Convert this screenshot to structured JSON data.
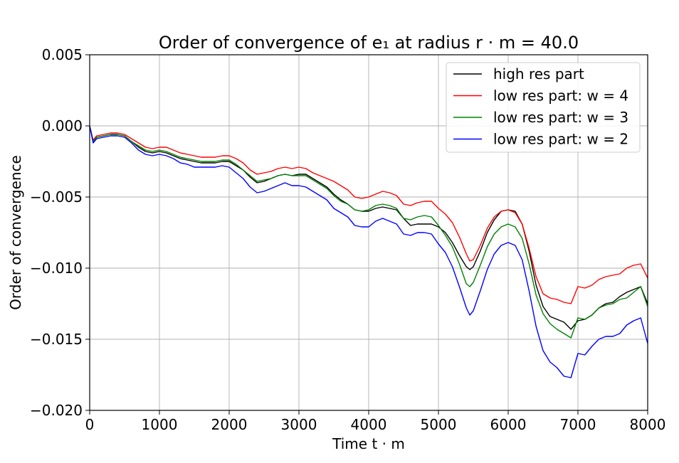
{
  "chart_data": {
    "type": "line",
    "title": "Order of convergence of e₁ at radius r · m = 40.0",
    "xlabel": "Time t · m",
    "ylabel": "Order of convergence",
    "xlim": [
      0,
      8000
    ],
    "ylim": [
      -0.02,
      0.005
    ],
    "xticks": [
      0,
      1000,
      2000,
      3000,
      4000,
      5000,
      6000,
      7000,
      8000
    ],
    "xtick_labels": [
      "0",
      "1000",
      "2000",
      "3000",
      "4000",
      "5000",
      "6000",
      "7000",
      "8000"
    ],
    "yticks": [
      0.005,
      0.0,
      -0.005,
      -0.01,
      -0.015,
      -0.02
    ],
    "ytick_labels": [
      "0.005",
      "0.000",
      "−0.005",
      "−0.010",
      "−0.015",
      "−0.020"
    ],
    "grid": true,
    "legend_position": "top-right",
    "x": [
      0,
      50,
      100,
      200,
      300,
      400,
      500,
      600,
      700,
      800,
      900,
      1000,
      1100,
      1200,
      1300,
      1400,
      1500,
      1600,
      1700,
      1800,
      1900,
      2000,
      2100,
      2200,
      2300,
      2400,
      2500,
      2600,
      2700,
      2800,
      2900,
      3000,
      3100,
      3200,
      3300,
      3400,
      3500,
      3600,
      3700,
      3800,
      3900,
      4000,
      4100,
      4200,
      4300,
      4400,
      4500,
      4600,
      4700,
      4800,
      4900,
      5000,
      5100,
      5200,
      5300,
      5400,
      5450,
      5500,
      5600,
      5700,
      5800,
      5900,
      6000,
      6100,
      6200,
      6300,
      6400,
      6500,
      6600,
      6700,
      6800,
      6900,
      7000,
      7100,
      7200,
      7300,
      7400,
      7500,
      7600,
      7700,
      7800,
      7900,
      8000
    ],
    "series": [
      {
        "name": "high res part",
        "color": "#000000",
        "values": [
          0.0,
          -0.0011,
          -0.0008,
          -0.0007,
          -0.0006,
          -0.0006,
          -0.0007,
          -0.0011,
          -0.0015,
          -0.0018,
          -0.0019,
          -0.0018,
          -0.0019,
          -0.0021,
          -0.0023,
          -0.0024,
          -0.0025,
          -0.0026,
          -0.0026,
          -0.0026,
          -0.0025,
          -0.0025,
          -0.0028,
          -0.0031,
          -0.0036,
          -0.004,
          -0.0039,
          -0.0037,
          -0.0035,
          -0.0034,
          -0.0035,
          -0.0034,
          -0.0034,
          -0.0037,
          -0.004,
          -0.0043,
          -0.0048,
          -0.0052,
          -0.0055,
          -0.0059,
          -0.006,
          -0.006,
          -0.0058,
          -0.0057,
          -0.0058,
          -0.0059,
          -0.0065,
          -0.007,
          -0.0069,
          -0.0069,
          -0.0069,
          -0.0071,
          -0.0075,
          -0.0082,
          -0.0091,
          -0.0099,
          -0.0101,
          -0.0099,
          -0.0088,
          -0.0075,
          -0.0066,
          -0.006,
          -0.0059,
          -0.006,
          -0.0069,
          -0.0088,
          -0.0112,
          -0.0127,
          -0.0134,
          -0.0136,
          -0.0138,
          -0.0143,
          -0.0137,
          -0.0136,
          -0.0133,
          -0.0128,
          -0.0125,
          -0.0124,
          -0.012,
          -0.0117,
          -0.0115,
          -0.0113,
          -0.0125
        ]
      },
      {
        "name": "low res part: w = 4",
        "color": "#ff0000",
        "values": [
          0.0,
          -0.001,
          -0.0007,
          -0.0006,
          -0.0005,
          -0.0005,
          -0.0006,
          -0.0009,
          -0.0012,
          -0.0015,
          -0.0016,
          -0.0015,
          -0.0015,
          -0.0017,
          -0.0019,
          -0.002,
          -0.0021,
          -0.0022,
          -0.0022,
          -0.0022,
          -0.0021,
          -0.0021,
          -0.0023,
          -0.0026,
          -0.0031,
          -0.0034,
          -0.0033,
          -0.0032,
          -0.003,
          -0.0029,
          -0.003,
          -0.0029,
          -0.003,
          -0.0033,
          -0.0035,
          -0.0037,
          -0.0039,
          -0.0042,
          -0.0045,
          -0.005,
          -0.0051,
          -0.005,
          -0.0048,
          -0.0046,
          -0.0047,
          -0.0049,
          -0.0055,
          -0.0056,
          -0.0054,
          -0.0053,
          -0.0053,
          -0.0058,
          -0.0062,
          -0.0068,
          -0.0078,
          -0.009,
          -0.0095,
          -0.0094,
          -0.0084,
          -0.0072,
          -0.0064,
          -0.006,
          -0.0059,
          -0.0061,
          -0.0069,
          -0.0086,
          -0.0106,
          -0.0118,
          -0.0121,
          -0.0122,
          -0.0124,
          -0.0125,
          -0.0113,
          -0.0114,
          -0.0112,
          -0.0108,
          -0.0106,
          -0.0105,
          -0.0104,
          -0.01,
          -0.0098,
          -0.0097,
          -0.0107
        ]
      },
      {
        "name": "low res part: w = 3",
        "color": "#008000",
        "values": [
          0.0,
          -0.0011,
          -0.0008,
          -0.0007,
          -0.0006,
          -0.0006,
          -0.0007,
          -0.0011,
          -0.0014,
          -0.0017,
          -0.0018,
          -0.0017,
          -0.0018,
          -0.002,
          -0.0022,
          -0.0023,
          -0.0024,
          -0.0025,
          -0.0025,
          -0.0025,
          -0.0024,
          -0.0024,
          -0.0027,
          -0.0031,
          -0.0035,
          -0.0039,
          -0.0038,
          -0.0037,
          -0.0035,
          -0.0034,
          -0.0035,
          -0.0035,
          -0.0035,
          -0.0038,
          -0.0041,
          -0.0044,
          -0.0049,
          -0.0053,
          -0.0055,
          -0.0059,
          -0.006,
          -0.0059,
          -0.0056,
          -0.0055,
          -0.0056,
          -0.0058,
          -0.0065,
          -0.0066,
          -0.0064,
          -0.0063,
          -0.0064,
          -0.007,
          -0.0077,
          -0.0085,
          -0.0097,
          -0.0111,
          -0.0113,
          -0.011,
          -0.0098,
          -0.0085,
          -0.0076,
          -0.0071,
          -0.0069,
          -0.0071,
          -0.0079,
          -0.0097,
          -0.0119,
          -0.0132,
          -0.0139,
          -0.0143,
          -0.0146,
          -0.0149,
          -0.0135,
          -0.0136,
          -0.0133,
          -0.0128,
          -0.0126,
          -0.0125,
          -0.0122,
          -0.0121,
          -0.0117,
          -0.0113,
          -0.0127
        ]
      },
      {
        "name": "low res part: w = 2",
        "color": "#0000ff",
        "values": [
          0.0,
          -0.0012,
          -0.0009,
          -0.0008,
          -0.0007,
          -0.0007,
          -0.0008,
          -0.0012,
          -0.0017,
          -0.002,
          -0.0021,
          -0.002,
          -0.0021,
          -0.0023,
          -0.0026,
          -0.0027,
          -0.0029,
          -0.0029,
          -0.0029,
          -0.0029,
          -0.0028,
          -0.0029,
          -0.0033,
          -0.0037,
          -0.0043,
          -0.0047,
          -0.0046,
          -0.0044,
          -0.0042,
          -0.004,
          -0.0042,
          -0.0042,
          -0.0043,
          -0.0046,
          -0.0049,
          -0.0052,
          -0.0058,
          -0.0061,
          -0.0064,
          -0.007,
          -0.0071,
          -0.0071,
          -0.0067,
          -0.0065,
          -0.0067,
          -0.0069,
          -0.0076,
          -0.0077,
          -0.0075,
          -0.0075,
          -0.0076,
          -0.0083,
          -0.0089,
          -0.0099,
          -0.0113,
          -0.0128,
          -0.0133,
          -0.013,
          -0.0116,
          -0.0101,
          -0.009,
          -0.0084,
          -0.0082,
          -0.0084,
          -0.0094,
          -0.0116,
          -0.0141,
          -0.0158,
          -0.0166,
          -0.017,
          -0.0176,
          -0.0177,
          -0.016,
          -0.0161,
          -0.0155,
          -0.015,
          -0.0148,
          -0.0148,
          -0.0146,
          -0.014,
          -0.0137,
          -0.0135,
          -0.0153
        ]
      }
    ]
  }
}
